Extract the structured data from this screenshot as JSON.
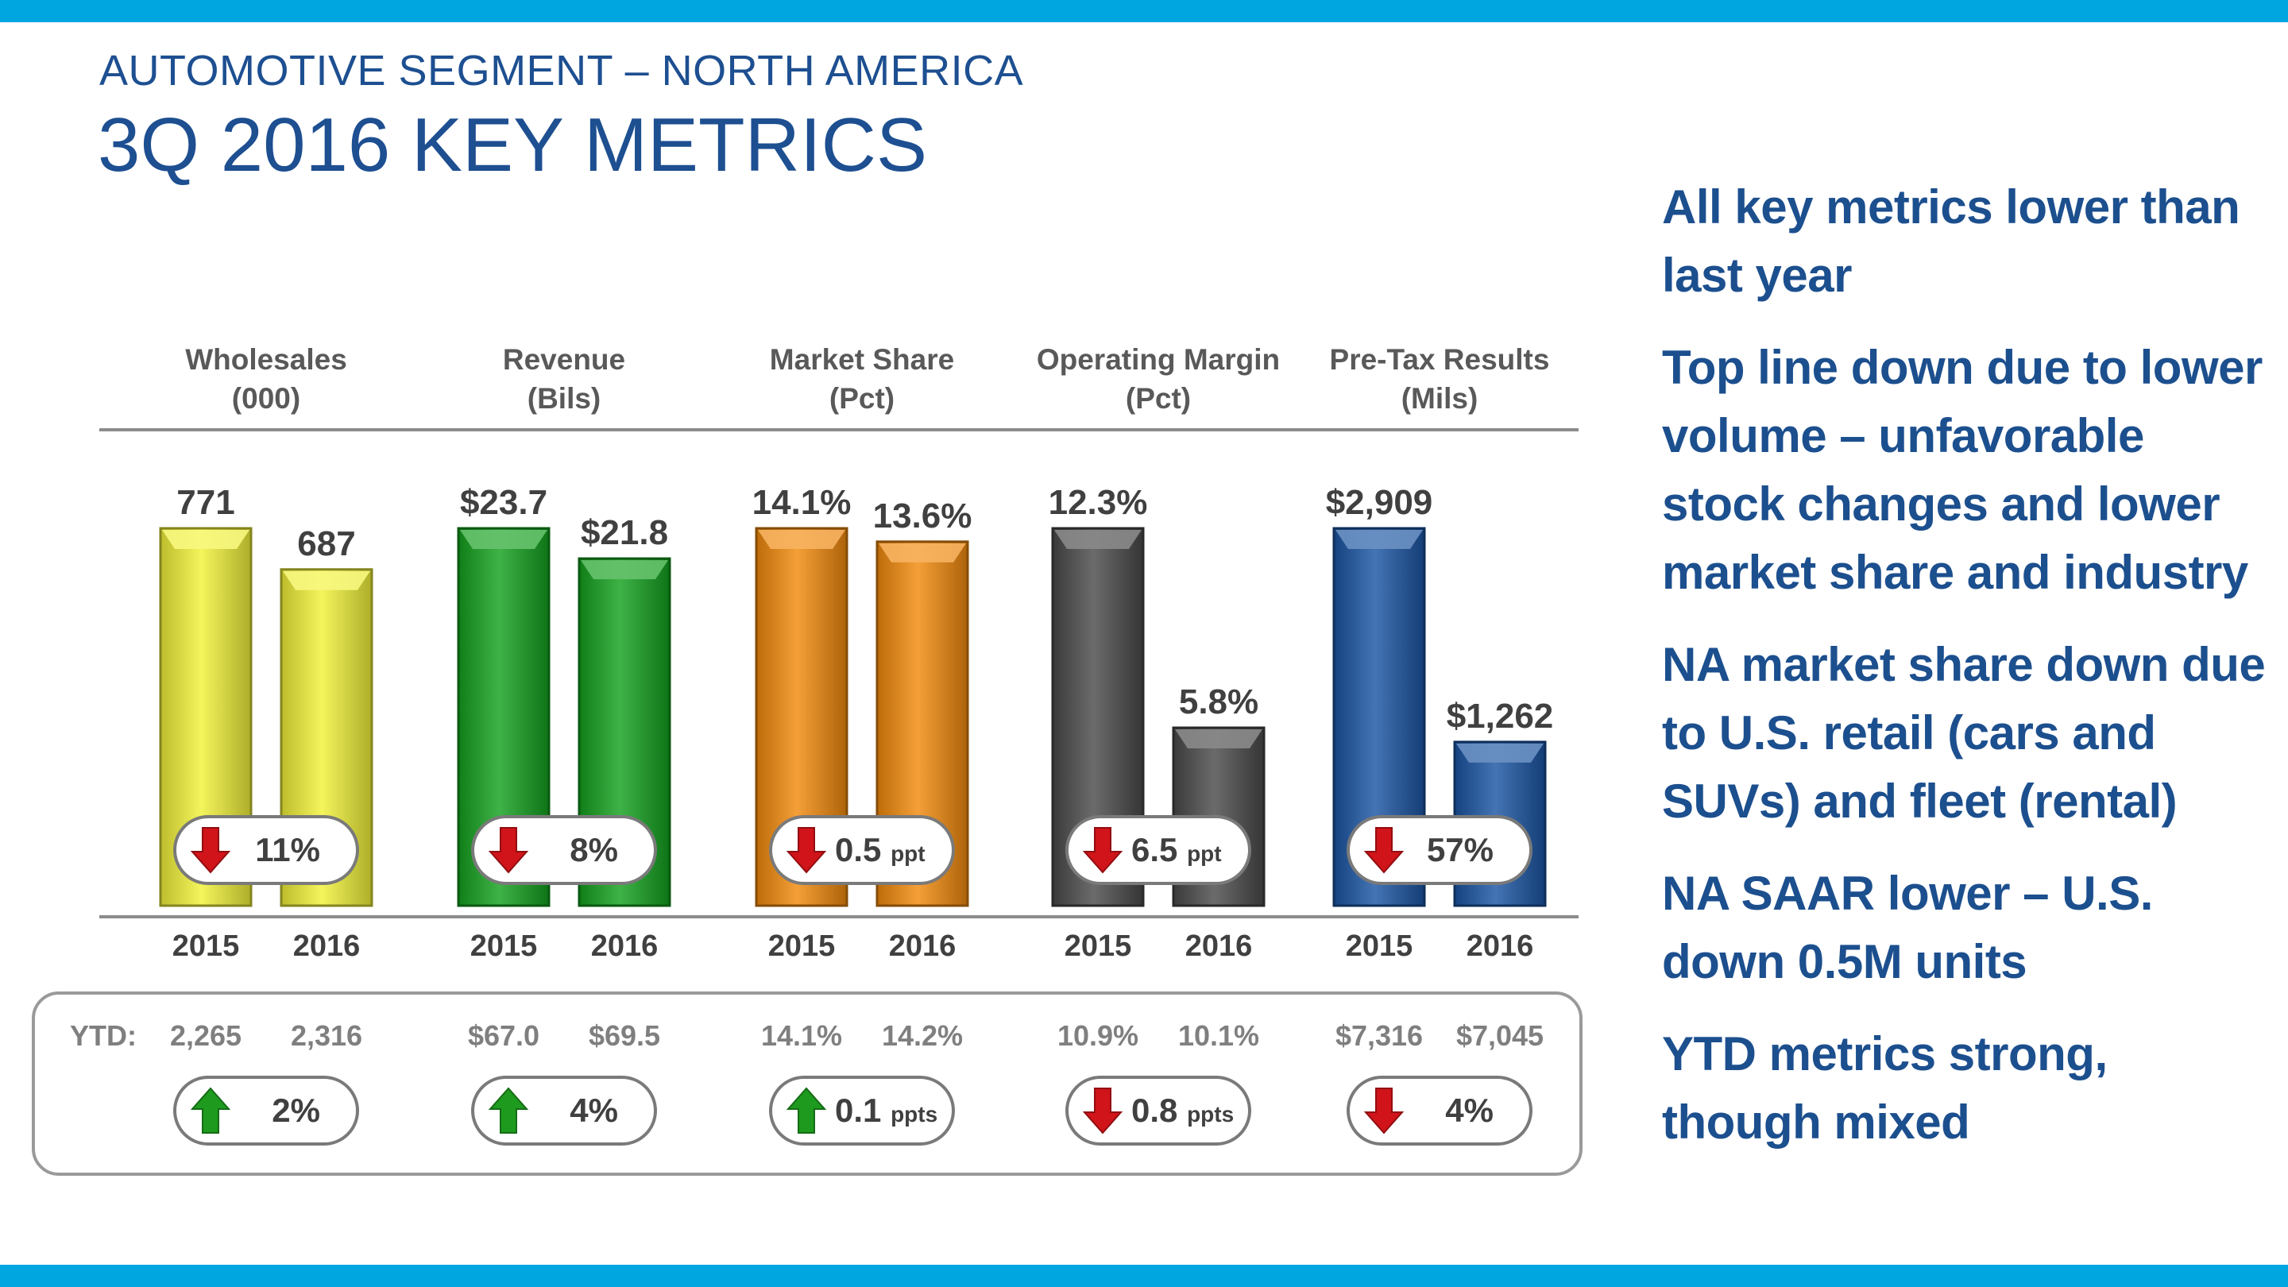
{
  "header": {
    "subtitle": "AUTOMOTIVE SEGMENT – NORTH AMERICA",
    "title": "3Q 2016 KEY METRICS"
  },
  "colors": {
    "band": "#00a6e0",
    "title": "#1d4f91",
    "up_arrow": "#1e9a1e",
    "down_arrow": "#d0141a"
  },
  "bullets": [
    "All key metrics lower than last year",
    "Top line down due to lower volume – unfavorable stock changes and lower market share and industry",
    "NA market share down due to U.S. retail (cars and SUVs) and fleet (rental)",
    "NA SAAR lower – U.S. down 0.5M units",
    "YTD metrics strong, though mixed"
  ],
  "chart_data": {
    "type": "bar",
    "title": "3Q 2016 KEY METRICS",
    "categories": [
      "2015",
      "2016"
    ],
    "ytd_label": "YTD:",
    "panels": [
      {
        "name": "Wholesales",
        "unit": "(000)",
        "color": "#f2f23a",
        "values": [
          771,
          687
        ],
        "labels": [
          "771",
          "687"
        ],
        "change": {
          "dir": "down",
          "value": "11%",
          "unit": ""
        },
        "ytd": [
          "2,265",
          "2,316"
        ],
        "ytd_change": {
          "dir": "up",
          "value": "2%",
          "unit": ""
        }
      },
      {
        "name": "Revenue",
        "unit": "(Bils)",
        "color": "#14a11e",
        "values": [
          23.7,
          21.8
        ],
        "labels": [
          "$23.7",
          "$21.8"
        ],
        "change": {
          "dir": "down",
          "value": "8%",
          "unit": ""
        },
        "ytd": [
          "$67.0",
          "$69.5"
        ],
        "ytd_change": {
          "dir": "up",
          "value": "4%",
          "unit": ""
        }
      },
      {
        "name": "Market Share",
        "unit": "(Pct)",
        "color": "#f28a0c",
        "values": [
          14.1,
          13.6
        ],
        "labels": [
          "14.1%",
          "13.6%"
        ],
        "change": {
          "dir": "down",
          "value": "0.5",
          "unit": "ppt"
        },
        "ytd": [
          "14.1%",
          "14.2%"
        ],
        "ytd_change": {
          "dir": "up",
          "value": "0.1",
          "unit": "ppts"
        }
      },
      {
        "name": "Operating Margin",
        "unit": "(Pct)",
        "color": "#4a4a4a",
        "values": [
          12.3,
          5.8
        ],
        "labels": [
          "12.3%",
          "5.8%"
        ],
        "change": {
          "dir": "down",
          "value": "6.5",
          "unit": "ppt"
        },
        "ytd": [
          "10.9%",
          "10.1%"
        ],
        "ytd_change": {
          "dir": "down",
          "value": "0.8",
          "unit": "ppts"
        }
      },
      {
        "name": "Pre-Tax Results",
        "unit": "(Mils)",
        "color": "#1b55a3",
        "values": [
          2909,
          1262
        ],
        "labels": [
          "$2,909",
          "$1,262"
        ],
        "change": {
          "dir": "down",
          "value": "57%",
          "unit": ""
        },
        "ytd": [
          "$7,316",
          "$7,045"
        ],
        "ytd_change": {
          "dir": "down",
          "value": "4%",
          "unit": ""
        }
      }
    ]
  }
}
